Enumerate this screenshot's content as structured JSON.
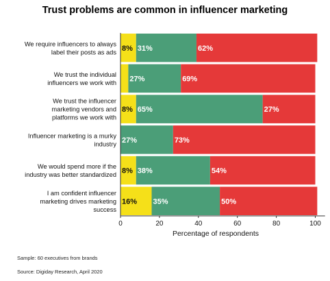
{
  "chart_data": {
    "type": "bar",
    "orientation": "horizontal",
    "stacked": true,
    "title": "Trust problems are common in influencer marketing",
    "xlabel": "Percentage of respondents",
    "ylabel": "",
    "xlim": [
      0,
      105
    ],
    "xticks": [
      0,
      20,
      40,
      60,
      80,
      100
    ],
    "grid": false,
    "legend": "none",
    "categories": [
      [
        "We require influencers to always",
        "label their posts as ads"
      ],
      [
        "We trust the individual",
        "influencers we work with"
      ],
      [
        "We trust the influencer",
        "marketing vendors and",
        "platforms we work with"
      ],
      [
        "Influencer marketing is a murky",
        "industry"
      ],
      [
        "We would spend more if the",
        "industry was better standardized"
      ],
      [
        "I am confident influencer",
        "marketing drives marketing",
        "success"
      ]
    ],
    "series": [
      {
        "color": "#f5e019",
        "values": [
          8,
          4,
          8,
          0,
          8,
          16
        ],
        "labels": [
          "8%",
          "",
          "8%",
          "",
          "8%",
          "16%"
        ]
      },
      {
        "color": "#4b9e78",
        "values": [
          31,
          27,
          65,
          27,
          38,
          35
        ],
        "labels": [
          "31%",
          "27%",
          "65%",
          "27%",
          "38%",
          "35%"
        ]
      },
      {
        "color": "#e53939",
        "values": [
          62,
          69,
          27,
          73,
          54,
          50
        ],
        "labels": [
          "62%",
          "69%",
          "27%",
          "73%",
          "54%",
          "50%"
        ]
      }
    ]
  },
  "footnotes": {
    "sample": "Sample: 60 executives from brands",
    "source": "Source: Digiday Research, April 2020"
  }
}
